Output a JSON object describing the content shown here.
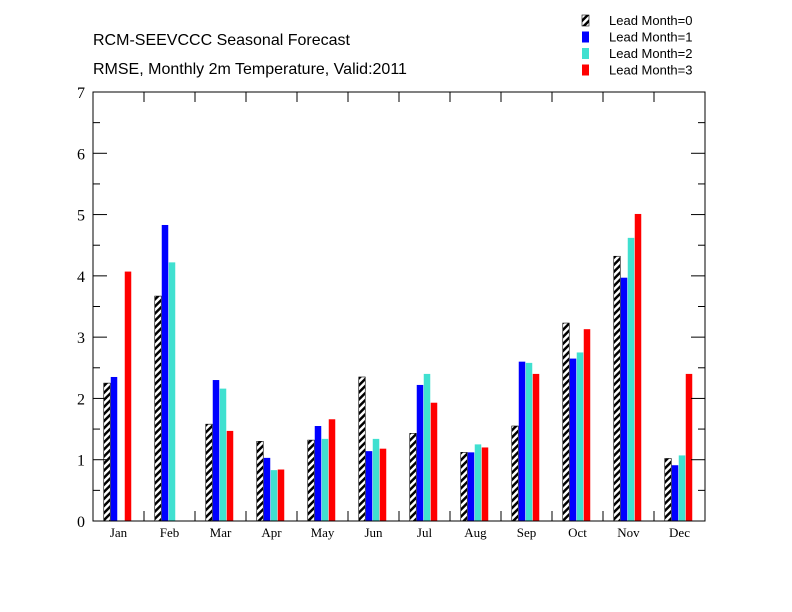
{
  "chart_data": {
    "type": "bar",
    "title": "RCM-SEEVCCC Seasonal Forecast",
    "subtitle": "RMSE, Monthly 2m Temperature, Valid:2011",
    "xlabel": "",
    "ylabel": "",
    "ylim": [
      0,
      7
    ],
    "yticks": [
      "0",
      "1",
      "2",
      "3",
      "4",
      "5",
      "6",
      "7"
    ],
    "legend_position": "top-right",
    "categories": [
      "Jan",
      "Feb",
      "Mar",
      "Apr",
      "May",
      "Jun",
      "Jul",
      "Aug",
      "Sep",
      "Oct",
      "Nov",
      "Dec"
    ],
    "series": [
      {
        "name": "Lead Month=0",
        "color": "#000000",
        "pattern": "hatch",
        "values": [
          2.25,
          3.67,
          1.58,
          1.3,
          1.32,
          2.35,
          1.43,
          1.12,
          1.55,
          3.23,
          4.32,
          1.02
        ]
      },
      {
        "name": "Lead Month=1",
        "color": "#0000ff",
        "pattern": "solid",
        "values": [
          2.35,
          4.83,
          2.3,
          1.03,
          1.55,
          1.14,
          2.22,
          1.12,
          2.6,
          2.65,
          3.97,
          0.91
        ]
      },
      {
        "name": "Lead Month=2",
        "color": "#40e0d0",
        "pattern": "solid",
        "values": [
          null,
          4.22,
          2.16,
          0.83,
          1.34,
          1.34,
          2.4,
          1.25,
          2.58,
          2.75,
          4.62,
          1.07
        ]
      },
      {
        "name": "Lead Month=3",
        "color": "#ff0000",
        "pattern": "solid",
        "values": [
          4.07,
          null,
          1.47,
          0.84,
          1.66,
          1.18,
          1.93,
          1.2,
          2.4,
          3.13,
          5.01,
          2.4
        ]
      }
    ]
  }
}
